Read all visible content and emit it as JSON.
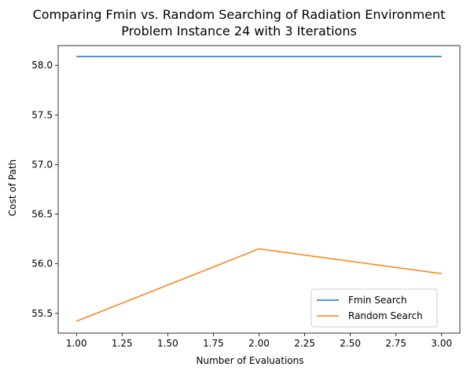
{
  "chart_data": {
    "type": "line",
    "title_line1": "Comparing Fmin vs. Random Searching of Radiation Environment",
    "title_line2": "Problem Instance 24 with 3 Iterations",
    "xlabel": "Number of Evaluations",
    "ylabel": "Cost of Path",
    "x": [
      1,
      2,
      3
    ],
    "xlim": [
      0.9,
      3.1
    ],
    "ylim": [
      55.3,
      58.2
    ],
    "xticks": [
      "1.00",
      "1.25",
      "1.50",
      "1.75",
      "2.00",
      "2.25",
      "2.50",
      "2.75",
      "3.00"
    ],
    "yticks": [
      "55.5",
      "56.0",
      "56.5",
      "57.0",
      "57.5",
      "58.0"
    ],
    "grid": false,
    "legend_position": "lower right",
    "series": [
      {
        "name": "Fmin Search",
        "color": "#1f77b4",
        "values": [
          58.09,
          58.09,
          58.09
        ]
      },
      {
        "name": "Random Search",
        "color": "#ff7f0e",
        "values": [
          55.42,
          56.15,
          55.9
        ]
      }
    ]
  }
}
